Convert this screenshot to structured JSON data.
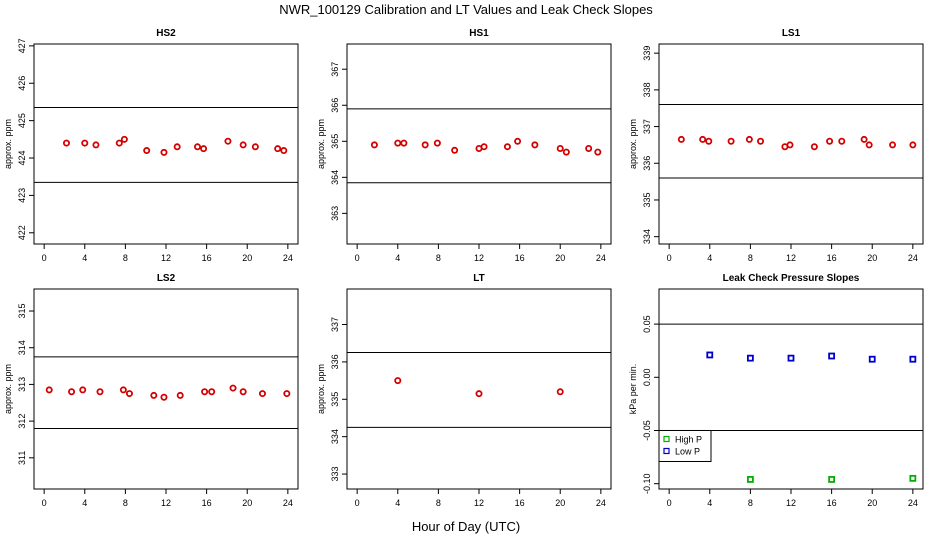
{
  "title": "NWR_100129  Calibration and LT Values and Leak Check Slopes",
  "xlabel": "Hour of Day (UTC)",
  "colors": {
    "calibration_points": "#d40000",
    "high_p": "#00b000",
    "low_p": "#0000cc",
    "lines": "#000000"
  },
  "chart_data": [
    {
      "type": "scatter",
      "title": "HS2",
      "ylabel": "approx. ppm",
      "xlim": [
        -1,
        25
      ],
      "ylim": [
        421.7,
        427.05
      ],
      "xticks": [
        0,
        4,
        8,
        12,
        16,
        20,
        24
      ],
      "yticks": [
        422,
        423,
        424,
        425,
        426,
        427
      ],
      "reference_lines": [
        425.35,
        423.35
      ],
      "series": [
        {
          "color": "#d40000",
          "marker": "circle",
          "points": [
            [
              2.2,
              424.4
            ],
            [
              4.0,
              424.4
            ],
            [
              5.1,
              424.35
            ],
            [
              7.4,
              424.4
            ],
            [
              7.9,
              424.5
            ],
            [
              10.1,
              424.2
            ],
            [
              11.8,
              424.15
            ],
            [
              13.1,
              424.3
            ],
            [
              15.1,
              424.3
            ],
            [
              15.7,
              424.25
            ],
            [
              18.1,
              424.45
            ],
            [
              19.6,
              424.35
            ],
            [
              20.8,
              424.3
            ],
            [
              23.0,
              424.25
            ],
            [
              23.6,
              424.2
            ]
          ]
        }
      ]
    },
    {
      "type": "scatter",
      "title": "HS1",
      "ylabel": "approx. ppm",
      "xlim": [
        -1,
        25
      ],
      "ylim": [
        362.15,
        367.7
      ],
      "xticks": [
        0,
        4,
        8,
        12,
        16,
        20,
        24
      ],
      "yticks": [
        363,
        364,
        365,
        366,
        367
      ],
      "reference_lines": [
        365.9,
        363.85
      ],
      "series": [
        {
          "color": "#d40000",
          "marker": "circle",
          "points": [
            [
              1.7,
              364.9
            ],
            [
              4.0,
              364.95
            ],
            [
              4.6,
              364.95
            ],
            [
              6.7,
              364.9
            ],
            [
              7.9,
              364.95
            ],
            [
              9.6,
              364.75
            ],
            [
              12.0,
              364.8
            ],
            [
              12.5,
              364.85
            ],
            [
              14.8,
              364.85
            ],
            [
              15.8,
              365.0
            ],
            [
              17.5,
              364.9
            ],
            [
              20.0,
              364.8
            ],
            [
              20.6,
              364.7
            ],
            [
              22.8,
              364.8
            ],
            [
              23.7,
              364.7
            ]
          ]
        }
      ]
    },
    {
      "type": "scatter",
      "title": "LS1",
      "ylabel": "approx. ppm",
      "xlim": [
        -1,
        25
      ],
      "ylim": [
        333.8,
        339.25
      ],
      "xticks": [
        0,
        4,
        8,
        12,
        16,
        20,
        24
      ],
      "yticks": [
        334,
        335,
        336,
        337,
        338,
        339
      ],
      "reference_lines": [
        337.6,
        335.6
      ],
      "series": [
        {
          "color": "#d40000",
          "marker": "circle",
          "points": [
            [
              1.2,
              336.65
            ],
            [
              3.3,
              336.65
            ],
            [
              3.9,
              336.6
            ],
            [
              6.1,
              336.6
            ],
            [
              7.9,
              336.65
            ],
            [
              9.0,
              336.6
            ],
            [
              11.4,
              336.45
            ],
            [
              11.9,
              336.5
            ],
            [
              14.3,
              336.45
            ],
            [
              15.8,
              336.6
            ],
            [
              17.0,
              336.6
            ],
            [
              19.2,
              336.65
            ],
            [
              19.7,
              336.5
            ],
            [
              22.0,
              336.5
            ],
            [
              24.0,
              336.5
            ]
          ]
        }
      ]
    },
    {
      "type": "scatter",
      "title": "LS2",
      "ylabel": "approx. ppm",
      "xlim": [
        -1,
        25
      ],
      "ylim": [
        310.15,
        315.6
      ],
      "xticks": [
        0,
        4,
        8,
        12,
        16,
        20,
        24
      ],
      "yticks": [
        311,
        312,
        313,
        314,
        315
      ],
      "reference_lines": [
        313.75,
        311.8
      ],
      "series": [
        {
          "color": "#d40000",
          "marker": "circle",
          "points": [
            [
              0.5,
              312.85
            ],
            [
              2.7,
              312.8
            ],
            [
              3.8,
              312.85
            ],
            [
              5.5,
              312.8
            ],
            [
              7.8,
              312.85
            ],
            [
              8.4,
              312.75
            ],
            [
              10.8,
              312.7
            ],
            [
              11.8,
              312.65
            ],
            [
              13.4,
              312.7
            ],
            [
              15.8,
              312.8
            ],
            [
              16.5,
              312.8
            ],
            [
              18.6,
              312.9
            ],
            [
              19.6,
              312.8
            ],
            [
              21.5,
              312.75
            ],
            [
              23.9,
              312.75
            ]
          ]
        }
      ]
    },
    {
      "type": "scatter",
      "title": "LT",
      "ylabel": "approx. ppm",
      "xlim": [
        -1,
        25
      ],
      "ylim": [
        332.6,
        337.95
      ],
      "xticks": [
        0,
        4,
        8,
        12,
        16,
        20,
        24
      ],
      "yticks": [
        333,
        334,
        335,
        336,
        337
      ],
      "reference_lines": [
        336.25,
        334.25
      ],
      "series": [
        {
          "color": "#d40000",
          "marker": "circle",
          "points": [
            [
              4.0,
              335.5
            ],
            [
              12.0,
              335.15
            ],
            [
              20.0,
              335.2
            ]
          ]
        }
      ]
    },
    {
      "type": "scatter",
      "title": "Leak Check Pressure Slopes",
      "ylabel": "kPa per min.",
      "xlim": [
        -1,
        25
      ],
      "ylim": [
        -0.105,
        0.083
      ],
      "xticks": [
        0,
        4,
        8,
        12,
        16,
        20,
        24
      ],
      "yticks": [
        -0.1,
        -0.05,
        0.0,
        0.05
      ],
      "ytick_labels": [
        "-0.10",
        "-0.05",
        "0.00",
        "0.05"
      ],
      "reference_lines": [
        0.05,
        -0.05
      ],
      "legend": {
        "position": "bottom-left",
        "entries": [
          {
            "label": "High P",
            "color": "#00b000"
          },
          {
            "label": "Low P",
            "color": "#0000cc"
          }
        ]
      },
      "series": [
        {
          "name": "High P",
          "color": "#00b000",
          "marker": "square",
          "points": [
            [
              8,
              -0.096
            ],
            [
              16,
              -0.096
            ],
            [
              24,
              -0.095
            ]
          ]
        },
        {
          "name": "Low P",
          "color": "#0000cc",
          "marker": "square",
          "points": [
            [
              4,
              0.021
            ],
            [
              8,
              0.018
            ],
            [
              12,
              0.018
            ],
            [
              16,
              0.02
            ],
            [
              20,
              0.017
            ],
            [
              24,
              0.017
            ]
          ]
        }
      ]
    }
  ]
}
